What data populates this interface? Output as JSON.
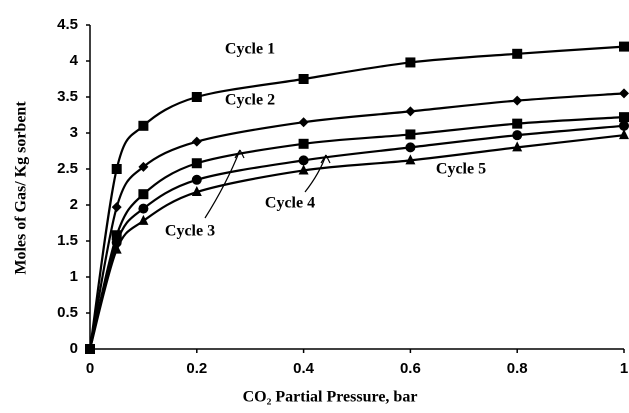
{
  "chart_data": {
    "type": "line",
    "x_label": "CO₂ Partial Pressure, bar",
    "y_label": "Moles of Gas/ Kg sorbent",
    "x": [
      0,
      0.05,
      0.1,
      0.2,
      0.4,
      0.6,
      0.8,
      1
    ],
    "series": [
      {
        "name": "Cycle 1",
        "color": "#000000",
        "marker": "square",
        "values": [
          0,
          2.5,
          3.1,
          3.5,
          3.75,
          3.98,
          4.1,
          4.2
        ]
      },
      {
        "name": "Cycle 2",
        "color": "#000000",
        "marker": "diamond",
        "values": [
          0,
          1.97,
          2.53,
          2.88,
          3.15,
          3.3,
          3.45,
          3.55
        ]
      },
      {
        "name": "Cycle 3",
        "color": "#000000",
        "marker": "square",
        "values": [
          0,
          1.58,
          2.15,
          2.58,
          2.85,
          2.98,
          3.13,
          3.22
        ]
      },
      {
        "name": "Cycle 4",
        "color": "#000000",
        "marker": "circle",
        "values": [
          0,
          1.48,
          1.95,
          2.35,
          2.62,
          2.8,
          2.97,
          3.1
        ]
      },
      {
        "name": "Cycle 5",
        "color": "#000000",
        "marker": "triangle",
        "values": [
          0,
          1.38,
          1.78,
          2.18,
          2.48,
          2.62,
          2.8,
          2.97
        ]
      }
    ],
    "xlim": [
      0,
      1
    ],
    "xticks": [
      0,
      0.2,
      0.4,
      0.6,
      0.8,
      1
    ],
    "ylim": [
      0,
      4.5
    ],
    "yticks": [
      0,
      0.5,
      1,
      1.5,
      2,
      2.5,
      3,
      3.5,
      4,
      4.5
    ],
    "grid": false
  }
}
